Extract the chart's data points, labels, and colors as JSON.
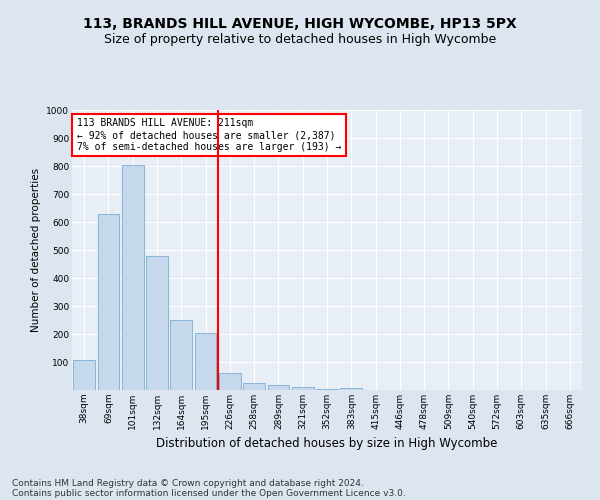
{
  "title": "113, BRANDS HILL AVENUE, HIGH WYCOMBE, HP13 5PX",
  "subtitle": "Size of property relative to detached houses in High Wycombe",
  "xlabel": "Distribution of detached houses by size in High Wycombe",
  "ylabel": "Number of detached properties",
  "categories": [
    "38sqm",
    "69sqm",
    "101sqm",
    "132sqm",
    "164sqm",
    "195sqm",
    "226sqm",
    "258sqm",
    "289sqm",
    "321sqm",
    "352sqm",
    "383sqm",
    "415sqm",
    "446sqm",
    "478sqm",
    "509sqm",
    "540sqm",
    "572sqm",
    "603sqm",
    "635sqm",
    "666sqm"
  ],
  "values": [
    108,
    630,
    805,
    480,
    250,
    205,
    60,
    25,
    17,
    10,
    5,
    8,
    0,
    0,
    0,
    0,
    0,
    0,
    0,
    0,
    0
  ],
  "bar_color": "#c5d8ec",
  "bar_edge_color": "#7aadd4",
  "vline_x": 6.0,
  "vline_color": "red",
  "annotation_text": "113 BRANDS HILL AVENUE: 211sqm\n← 92% of detached houses are smaller (2,387)\n7% of semi-detached houses are larger (193) →",
  "annotation_box_color": "white",
  "annotation_box_edgecolor": "red",
  "ylim": [
    0,
    1000
  ],
  "yticks": [
    0,
    100,
    200,
    300,
    400,
    500,
    600,
    700,
    800,
    900,
    1000
  ],
  "footer1": "Contains HM Land Registry data © Crown copyright and database right 2024.",
  "footer2": "Contains public sector information licensed under the Open Government Licence v3.0.",
  "bg_color": "#dde6f0",
  "plot_bg_color": "#e8eef5",
  "grid_color": "white",
  "title_fontsize": 10,
  "subtitle_fontsize": 9,
  "xlabel_fontsize": 8.5,
  "ylabel_fontsize": 7.5,
  "tick_fontsize": 6.5,
  "footer_fontsize": 6.5
}
